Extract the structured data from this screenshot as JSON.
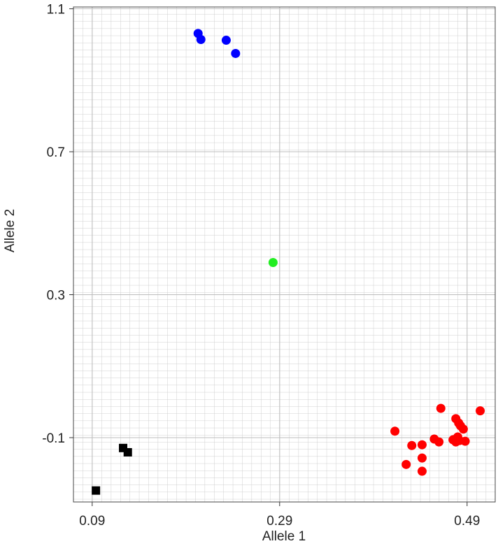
{
  "chart_data": {
    "type": "scatter",
    "xlabel": "Allele 1",
    "ylabel": "Allele 2",
    "xlim": [
      0.07,
      0.52
    ],
    "ylim": [
      -0.28,
      1.105
    ],
    "xticks": [
      0.09,
      0.29,
      0.49
    ],
    "yticks": [
      1.1,
      0.7,
      0.3,
      -0.1
    ],
    "grid": true,
    "series": [
      {
        "color": "#0000ff",
        "marker": "circle",
        "x": [
          0.203,
          0.206,
          0.233,
          0.243
        ],
        "values": [
          1.031,
          1.014,
          1.012,
          0.975
        ]
      },
      {
        "color": "#22ee22",
        "marker": "circle",
        "x": [
          0.283
        ],
        "values": [
          0.39
        ]
      },
      {
        "color": "#000000",
        "marker": "square",
        "x": [
          0.094,
          0.123,
          0.128
        ],
        "values": [
          -0.248,
          -0.129,
          -0.141
        ]
      },
      {
        "color": "#ff0000",
        "marker": "circle",
        "x": [
          0.413,
          0.431,
          0.442,
          0.425,
          0.442,
          0.442,
          0.462,
          0.455,
          0.46,
          0.478,
          0.481,
          0.483,
          0.486,
          0.475,
          0.48,
          0.478,
          0.482,
          0.488,
          0.504
        ],
        "values": [
          -0.082,
          -0.122,
          -0.12,
          -0.175,
          -0.157,
          -0.194,
          -0.018,
          -0.104,
          -0.112,
          -0.047,
          -0.059,
          -0.067,
          -0.076,
          -0.106,
          -0.098,
          -0.112,
          -0.108,
          -0.11,
          -0.025
        ]
      }
    ]
  }
}
